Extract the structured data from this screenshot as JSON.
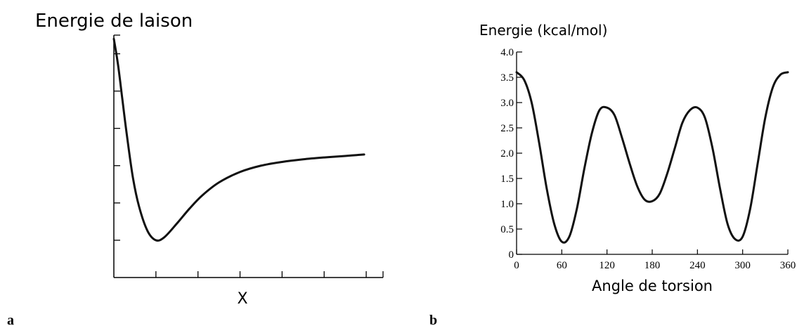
{
  "chart_data": [
    {
      "panel_label": "a",
      "type": "line",
      "ylabel": "Energie de laison",
      "xlabel": "X",
      "xlim": [
        0,
        6.4
      ],
      "ylim": [
        0,
        6.5
      ],
      "x_ticks": [
        1,
        2,
        3,
        4,
        5,
        6
      ],
      "y_ticks": [
        1,
        2,
        3,
        4,
        5,
        6
      ],
      "tick_labels_shown": false,
      "grid": false,
      "series": [
        {
          "x": [
            0,
            0.1,
            0.2,
            0.3,
            0.45,
            0.6,
            0.8,
            1.0,
            1.2,
            1.5,
            1.8,
            2.1,
            2.5,
            3.0,
            3.5,
            4.0,
            4.5,
            5.0,
            5.5,
            5.95
          ],
          "y": [
            6.4,
            5.7,
            4.8,
            3.9,
            2.7,
            1.9,
            1.25,
            1.0,
            1.08,
            1.45,
            1.85,
            2.2,
            2.55,
            2.83,
            3.0,
            3.1,
            3.17,
            3.22,
            3.26,
            3.3
          ]
        }
      ]
    },
    {
      "panel_label": "b",
      "type": "line",
      "ylabel": "Energie (kcal/mol)",
      "xlabel": "Angle de torsion",
      "xlim": [
        0,
        360
      ],
      "ylim": [
        0,
        4.0
      ],
      "x_ticks": [
        0,
        60,
        120,
        180,
        240,
        300,
        360
      ],
      "x_tick_labels": [
        "0",
        "60",
        "120",
        "180",
        "240",
        "300",
        "360"
      ],
      "y_ticks": [
        0,
        0.5,
        1.0,
        1.5,
        2.0,
        2.5,
        3.0,
        3.5,
        4.0
      ],
      "y_tick_labels": [
        "0",
        "0.5",
        "1.0",
        "1.5",
        "2.0",
        "2.5",
        "3.0",
        "3.5",
        "4.0"
      ],
      "grid": false,
      "series": [
        {
          "x": [
            0,
            10,
            20,
            30,
            40,
            50,
            60,
            70,
            80,
            90,
            100,
            110,
            120,
            130,
            140,
            150,
            160,
            170,
            180,
            190,
            200,
            210,
            220,
            230,
            240,
            250,
            260,
            270,
            280,
            290,
            300,
            310,
            320,
            330,
            340,
            350,
            360
          ],
          "y": [
            3.6,
            3.45,
            3.0,
            2.2,
            1.3,
            0.6,
            0.25,
            0.35,
            0.9,
            1.7,
            2.4,
            2.85,
            2.9,
            2.75,
            2.3,
            1.8,
            1.35,
            1.08,
            1.05,
            1.2,
            1.6,
            2.1,
            2.6,
            2.85,
            2.9,
            2.7,
            2.1,
            1.3,
            0.6,
            0.3,
            0.35,
            0.9,
            1.8,
            2.7,
            3.3,
            3.55,
            3.6
          ]
        }
      ]
    }
  ]
}
